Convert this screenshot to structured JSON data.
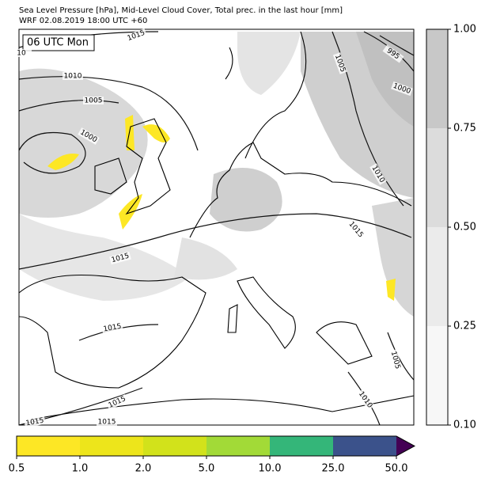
{
  "header": {
    "title": "Sea Level Pressure [hPa], Mid-Level Cloud Cover, Total prec. in the last hour [mm]",
    "subtitle": "WRF 02.08.2019 18:00 UTC +60"
  },
  "time_label": "06 UTC Mon",
  "contour_labels": [
    "1015",
    "10",
    "1010",
    "1005",
    "1000",
    "1005",
    "995",
    "1000",
    "1010",
    "1015",
    "1015",
    "1015",
    "1005",
    "1015",
    "1015",
    "1015",
    "1010"
  ],
  "cloud_colorbar": {
    "ticks": [
      {
        "value": 0.1,
        "label": "0.10"
      },
      {
        "value": 0.25,
        "label": "0.25"
      },
      {
        "value": 0.5,
        "label": "0.50"
      },
      {
        "value": 0.75,
        "label": "0.75"
      },
      {
        "value": 1.0,
        "label": "1.00"
      }
    ],
    "colors": [
      "#f7f7f7",
      "#ebebeb",
      "#dcdcdc",
      "#c8c8c8"
    ]
  },
  "precip_colorbar": {
    "ticks": [
      0.5,
      {
        "value": 1.0,
        "label": "1.0"
      },
      {
        "value": 2.0,
        "label": "2.0"
      },
      {
        "value": 5.0,
        "label": "5.0"
      },
      {
        "value": 10.0,
        "label": "10.0"
      },
      {
        "value": 25.0,
        "label": "25.0"
      },
      {
        "value": 50.0,
        "label": "50.0"
      }
    ],
    "colors": [
      "#fde725",
      "#ede51b",
      "#d2e21b",
      "#a2da37",
      "#34b679",
      "#3b528b"
    ],
    "extend_color": "#440154"
  }
}
